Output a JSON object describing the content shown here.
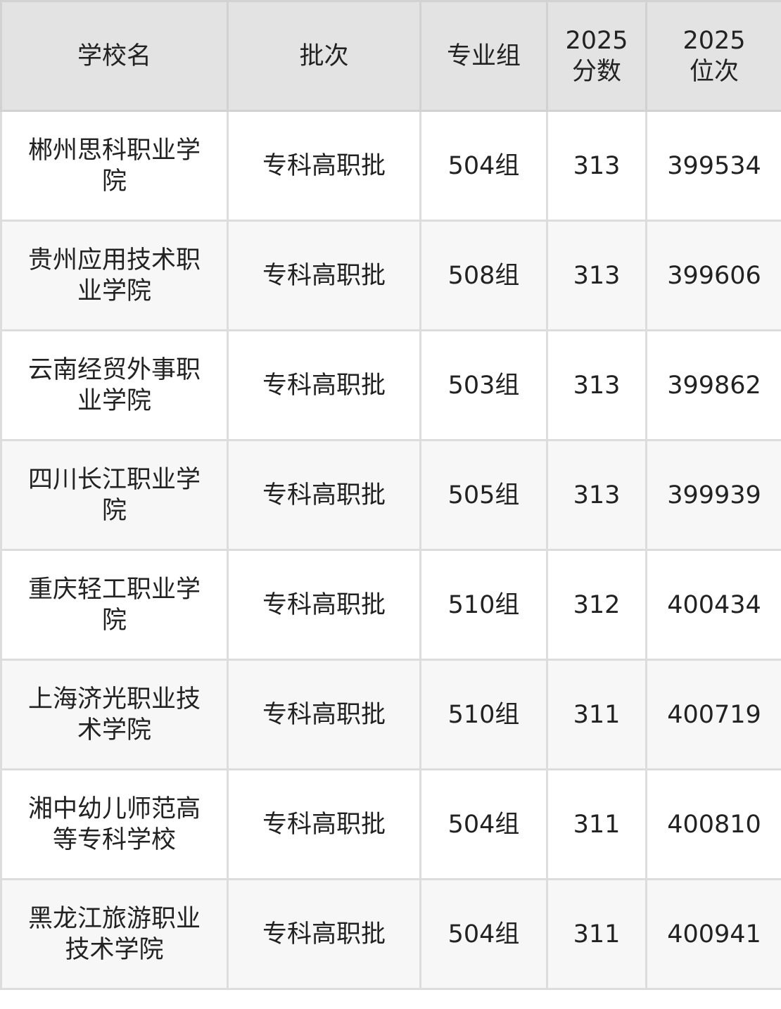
{
  "table": {
    "headers": [
      "学校名",
      "批次",
      "专业组",
      "2025\n分数",
      "2025\n位次"
    ],
    "rows": [
      [
        "郴州思科职业学院",
        "专科高职批",
        "504组",
        "313",
        "399534"
      ],
      [
        "贵州应用技术职业学院",
        "专科高职批",
        "508组",
        "313",
        "399606"
      ],
      [
        "云南经贸外事职业学院",
        "专科高职批",
        "503组",
        "313",
        "399862"
      ],
      [
        "四川长江职业学院",
        "专科高职批",
        "505组",
        "313",
        "399939"
      ],
      [
        "重庆轻工职业学院",
        "专科高职批",
        "510组",
        "312",
        "400434"
      ],
      [
        "上海济光职业技术学院",
        "专科高职批",
        "510组",
        "311",
        "400719"
      ],
      [
        "湘中幼儿师范高等专科学校",
        "专科高职批",
        "504组",
        "311",
        "400810"
      ],
      [
        "黑龙江旅游职业技术学院",
        "专科高职批",
        "504组",
        "311",
        "400941"
      ]
    ]
  },
  "colors": {
    "header_bg": "#e3e3e3",
    "even_row_bg": "#f7f7f7",
    "border": "#dddddd"
  }
}
